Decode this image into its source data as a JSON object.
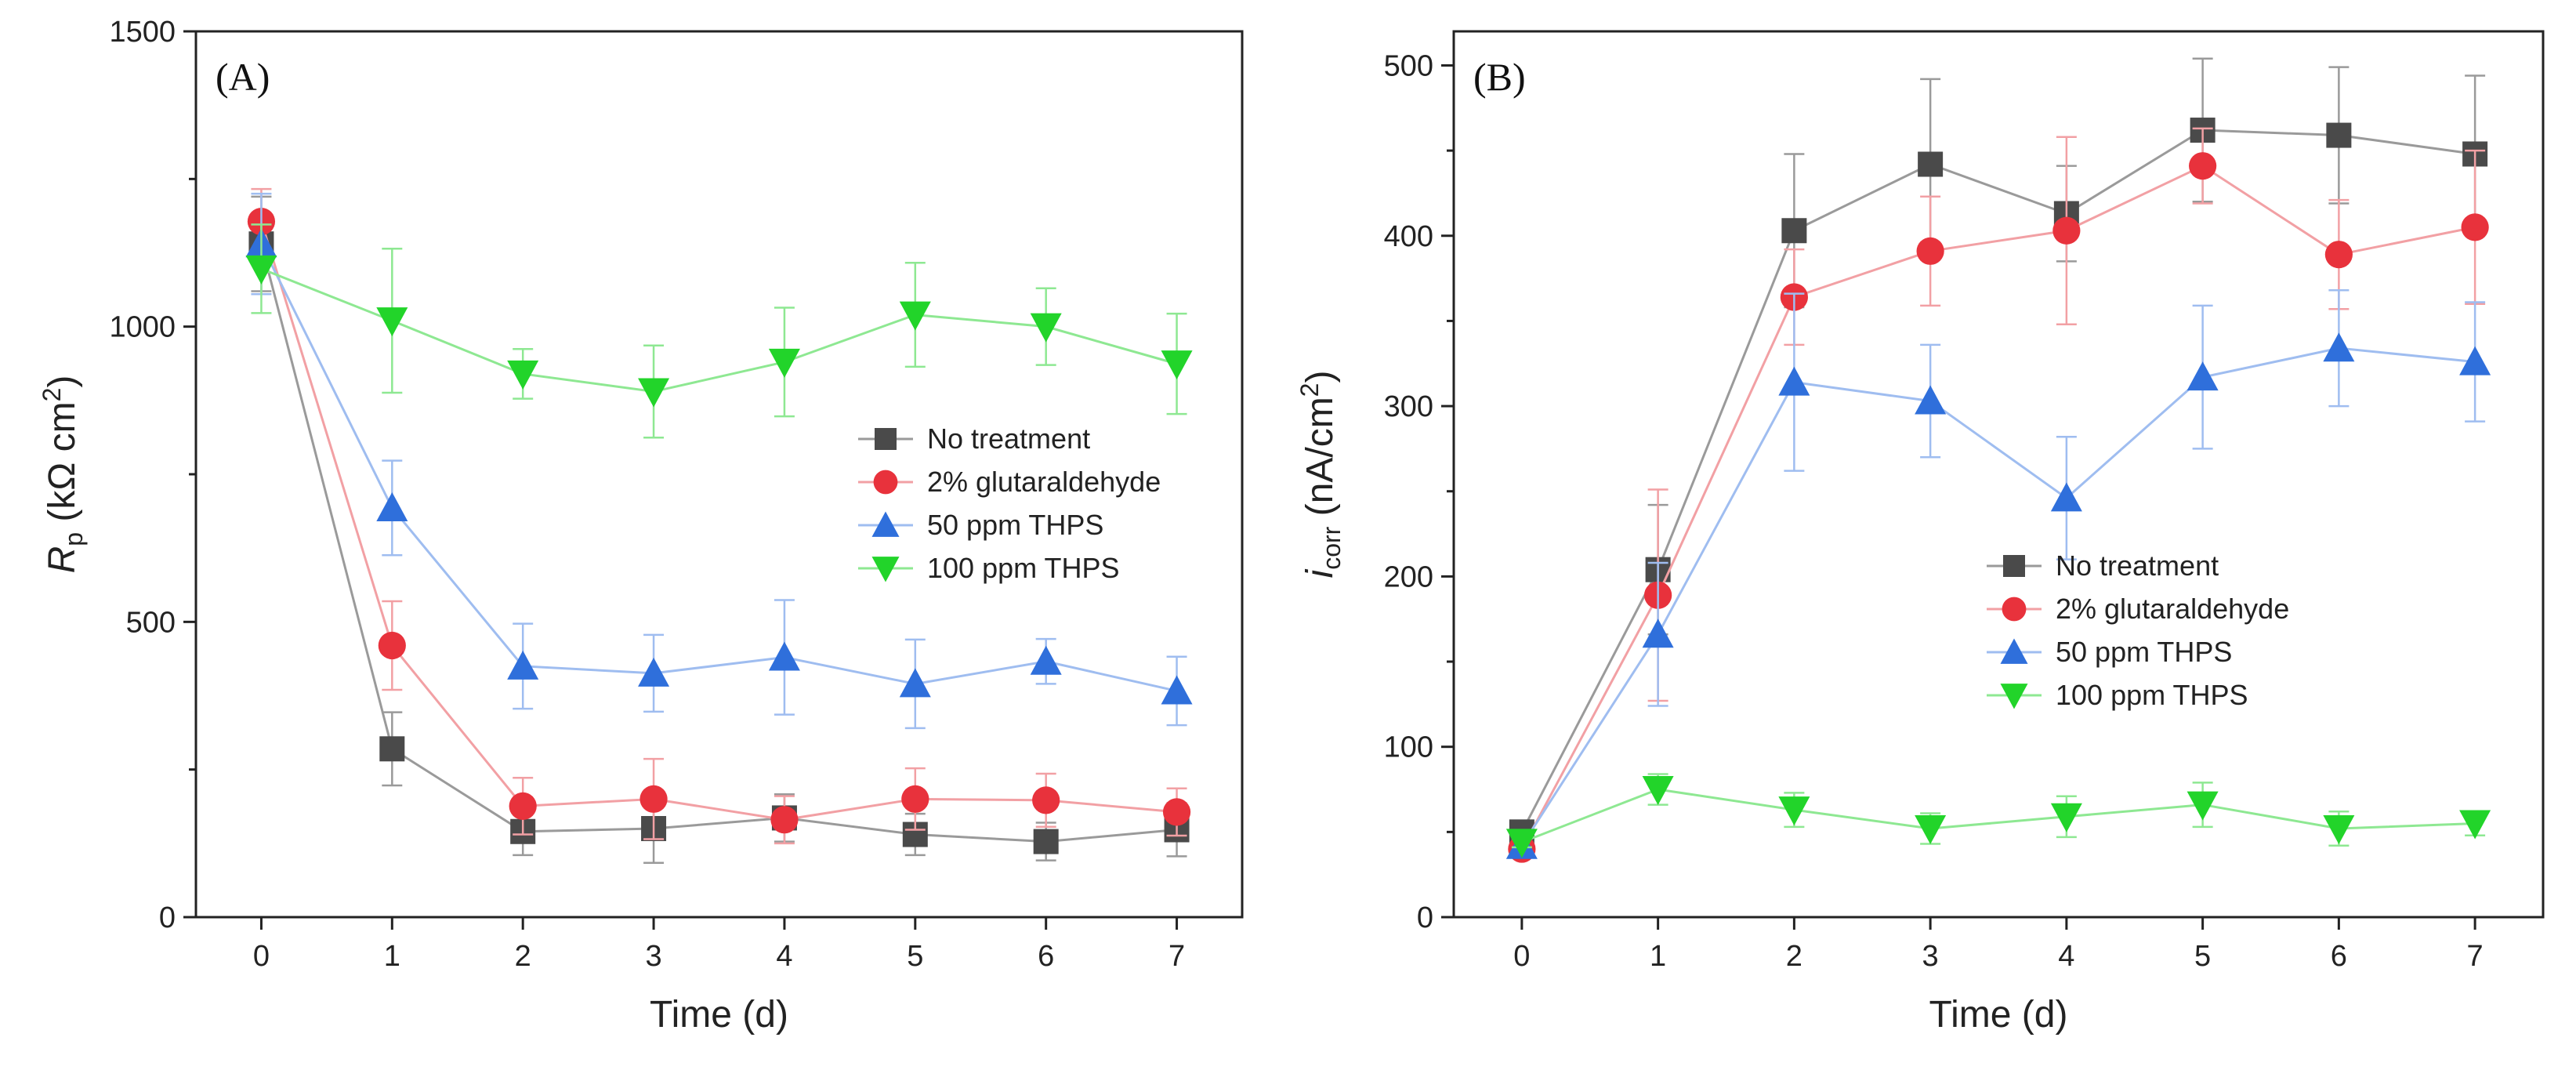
{
  "chart_data": [
    {
      "type": "line",
      "panel_label": "(A)",
      "xlabel": "Time (d)",
      "ylabel_main": "R",
      "ylabel_sub": "p",
      "ylabel_unit_pre": " (kΩ cm",
      "ylabel_unit_sup": "2",
      "ylabel_unit_post": ")",
      "xlim": [
        -0.5,
        7.5
      ],
      "ylim": [
        0,
        1500
      ],
      "xticks": [
        0,
        1,
        2,
        3,
        4,
        5,
        6,
        7
      ],
      "yticks": [
        0,
        500,
        1000,
        1500
      ],
      "x": [
        0,
        1,
        2,
        3,
        4,
        5,
        6,
        7
      ],
      "legend_position": "center-right",
      "series": [
        {
          "name": "No treatment",
          "marker": "square",
          "color": "#4a4a4a",
          "line_color": "#9a9a9a",
          "values": [
            1140,
            285,
            145,
            150,
            168,
            140,
            128,
            148
          ],
          "errors": [
            80,
            62,
            40,
            58,
            40,
            35,
            32,
            45
          ]
        },
        {
          "name": "2% glutaraldehyde",
          "marker": "circle",
          "color": "#e8323c",
          "line_color": "#f2a0a4",
          "values": [
            1178,
            460,
            188,
            200,
            165,
            200,
            198,
            178
          ],
          "errors": [
            55,
            75,
            48,
            68,
            40,
            52,
            45,
            40
          ]
        },
        {
          "name": "50 ppm THPS",
          "marker": "triangle-up",
          "color": "#2f6fdb",
          "line_color": "#9fbdf0",
          "values": [
            1140,
            693,
            425,
            413,
            440,
            395,
            433,
            383
          ],
          "errors": [
            85,
            80,
            72,
            65,
            97,
            75,
            38,
            58
          ]
        },
        {
          "name": "100 ppm THPS",
          "marker": "triangle-down",
          "color": "#22d42a",
          "line_color": "#8ee892",
          "values": [
            1098,
            1010,
            920,
            890,
            940,
            1020,
            1000,
            937
          ],
          "errors": [
            75,
            122,
            42,
            78,
            92,
            88,
            65,
            85
          ]
        }
      ]
    },
    {
      "type": "line",
      "panel_label": "(B)",
      "xlabel": "Time (d)",
      "ylabel_main": "i",
      "ylabel_sub": "corr",
      "ylabel_unit_pre": " (nA/cm",
      "ylabel_unit_sup": "2",
      "ylabel_unit_post": ")",
      "xlim": [
        -0.5,
        7.5
      ],
      "ylim": [
        0,
        520
      ],
      "xticks": [
        0,
        1,
        2,
        3,
        4,
        5,
        6,
        7
      ],
      "yticks": [
        0,
        100,
        200,
        300,
        400,
        500
      ],
      "x": [
        0,
        1,
        2,
        3,
        4,
        5,
        6,
        7
      ],
      "legend_position": "center-right",
      "series": [
        {
          "name": "No treatment",
          "marker": "square",
          "color": "#4a4a4a",
          "line_color": "#9a9a9a",
          "values": [
            50,
            204,
            403,
            442,
            413,
            462,
            459,
            448
          ],
          "errors": [
            5,
            38,
            45,
            50,
            28,
            42,
            40,
            46
          ]
        },
        {
          "name": "2% glutaraldehyde",
          "marker": "circle",
          "color": "#e8323c",
          "line_color": "#f2a0a4",
          "values": [
            40,
            189,
            364,
            391,
            403,
            441,
            389,
            405
          ],
          "errors": [
            4,
            62,
            28,
            32,
            55,
            22,
            32,
            45
          ]
        },
        {
          "name": "50 ppm THPS",
          "marker": "triangle-up",
          "color": "#2f6fdb",
          "line_color": "#9fbdf0",
          "values": [
            42,
            166,
            314,
            303,
            246,
            317,
            334,
            326
          ],
          "errors": [
            4,
            42,
            52,
            33,
            36,
            42,
            34,
            35
          ]
        },
        {
          "name": "100 ppm THPS",
          "marker": "triangle-down",
          "color": "#22d42a",
          "line_color": "#8ee892",
          "values": [
            44,
            75,
            63,
            52,
            59,
            66,
            52,
            55
          ],
          "errors": [
            3,
            9,
            10,
            9,
            12,
            13,
            10,
            7
          ]
        }
      ]
    }
  ]
}
